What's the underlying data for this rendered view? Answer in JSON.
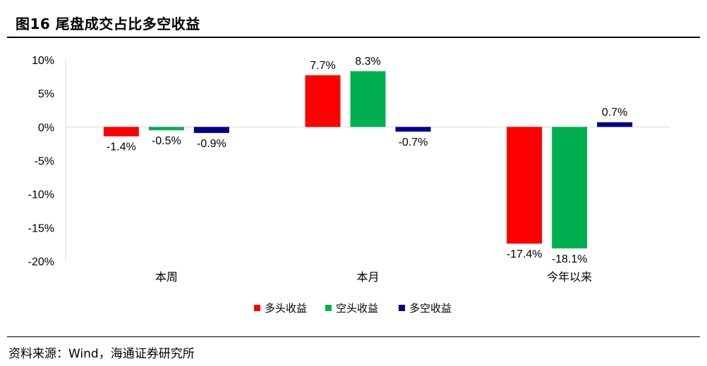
{
  "header": {
    "title": "图16 尾盘成交占比多空收益"
  },
  "footer": {
    "source": "资料来源：Wind，海通证券研究所"
  },
  "colors": {
    "long": "#ff0000",
    "short": "#00b050",
    "longshort": "#00008b",
    "axis": "#d9d9d9"
  },
  "chart_data": {
    "type": "bar",
    "categories": [
      "本周",
      "本月",
      "今年以来"
    ],
    "series": [
      {
        "name": "多头收益",
        "values": [
          -1.4,
          7.7,
          -17.4
        ],
        "labels": [
          "-1.4%",
          "7.7%",
          "-17.4%"
        ]
      },
      {
        "name": "空头收益",
        "values": [
          -0.5,
          8.3,
          -18.1
        ],
        "labels": [
          "-0.5%",
          "8.3%",
          "-18.1%"
        ]
      },
      {
        "name": "多空收益",
        "values": [
          -0.9,
          -0.7,
          0.7
        ],
        "labels": [
          "-0.9%",
          "-0.7%",
          "0.7%"
        ]
      }
    ],
    "ylim": [
      -20,
      10
    ],
    "yticks": [
      "10%",
      "5%",
      "0%",
      "-5%",
      "-10%",
      "-15%",
      "-20%"
    ],
    "ytick_values": [
      10,
      5,
      0,
      -5,
      -10,
      -15,
      -20
    ],
    "grid": false,
    "legend_position": "bottom"
  }
}
